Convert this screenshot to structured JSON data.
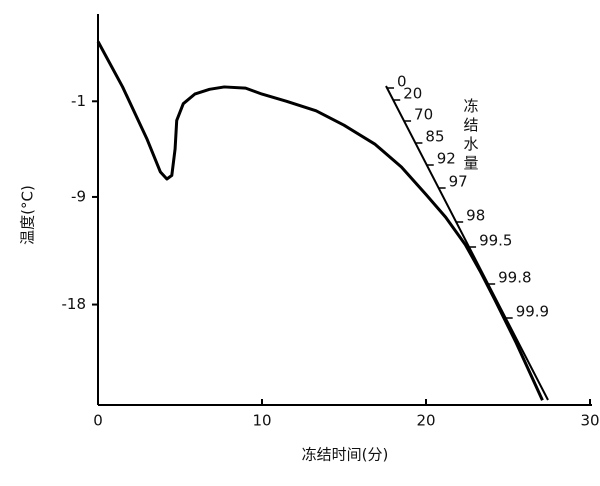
{
  "chart_data": {
    "type": "line",
    "x_label": "冻结时间(分)",
    "y_label": "温度(°C)",
    "series": [
      {
        "color": "#000000",
        "x": [
          0,
          1.5,
          3,
          3.8,
          4.2,
          4.5,
          4.7,
          4.8,
          5.2,
          5.9,
          6.8,
          7.7,
          9,
          10,
          11.5,
          13.3,
          15,
          16.9,
          18.5,
          20,
          21.2,
          22.4,
          23.3,
          24.2,
          25.5,
          27.1
        ],
        "values": [
          4.0,
          0.2,
          -4.2,
          -6.9,
          -7.5,
          -7.2,
          -5,
          -2.6,
          -1.2,
          -0.4,
          0,
          0.2,
          0.1,
          -0.4,
          -1,
          -1.8,
          -3,
          -4.6,
          -6.5,
          -8.8,
          -10.7,
          -13,
          -15.2,
          -17.6,
          -21.2,
          -26.0
        ]
      }
    ],
    "xlim": [
      0,
      30
    ],
    "xticks": [
      0,
      10,
      20,
      30
    ],
    "ylim": [
      -26.4,
      6.3
    ],
    "yticks": [
      -1,
      -9,
      -18
    ],
    "scale_title": "冻结水量",
    "scale_labels": [
      "0",
      "20",
      "70",
      "85",
      "92",
      "97",
      "98",
      "99.5",
      "99.8",
      "99.9"
    ]
  }
}
